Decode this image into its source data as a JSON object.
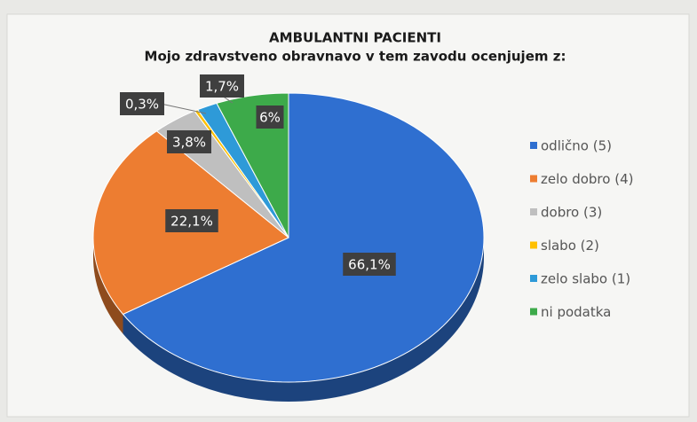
{
  "chart_data": {
    "type": "pie",
    "title": "AMBULANTNI PACIENTI",
    "subtitle": "Mojo zdravstveno obravnavo v tem zavodu ocenjujem z:",
    "categories": [
      "odlično (5)",
      "zelo dobro (4)",
      "dobro (3)",
      "slabo (2)",
      "zelo slabo (1)",
      "ni podatka"
    ],
    "values": [
      66.1,
      22.1,
      3.8,
      0.3,
      1.7,
      6
    ],
    "value_labels": [
      "66,1%",
      "22,1%",
      "3,8%",
      "0,3%",
      "1,7%",
      "6%"
    ],
    "colors": [
      "#2f6fd0",
      "#ed7d31",
      "#bfbfbf",
      "#ffc000",
      "#2e9ad8",
      "#3daa4a"
    ],
    "legend": "right"
  }
}
